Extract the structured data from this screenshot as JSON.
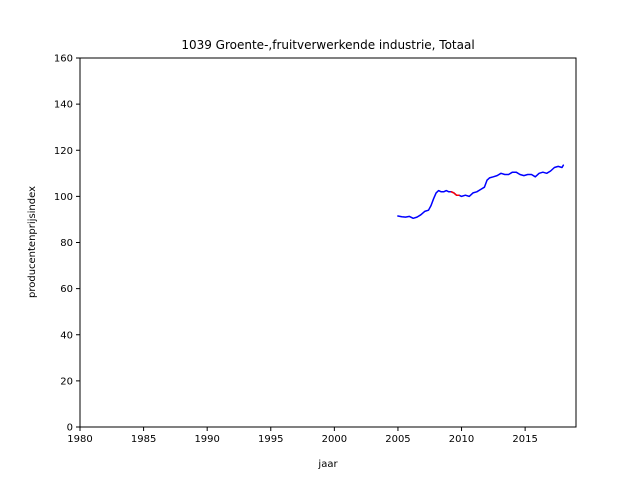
{
  "chart_data": {
    "type": "line",
    "title": "1039 Groente-,fruitverwerkende industrie, Totaal",
    "xlabel": "jaar",
    "ylabel": "producentenprijsindex",
    "xlim": [
      1980,
      2019
    ],
    "ylim": [
      0,
      160
    ],
    "xticks": [
      1980,
      1985,
      1990,
      1995,
      2000,
      2005,
      2010,
      2015
    ],
    "xtick_labels": [
      "1980",
      "1985",
      "1990",
      "1995",
      "2000",
      "2005",
      "2010",
      "2015"
    ],
    "yticks": [
      0,
      20,
      40,
      60,
      80,
      100,
      120,
      140,
      160
    ],
    "ytick_labels": [
      "0",
      "20",
      "40",
      "60",
      "80",
      "100",
      "120",
      "140",
      "160"
    ],
    "grid": false,
    "colors": {
      "main": "#0000ff",
      "highlight": "#ff0000",
      "axis": "#000000",
      "background": "#ffffff"
    },
    "series": [
      {
        "name": "producentenprijsindex",
        "color": "#0000ff",
        "x": [
          2005.0,
          2005.3,
          2005.6,
          2005.9,
          2006.2,
          2006.5,
          2006.8,
          2007.1,
          2007.4,
          2007.6,
          2007.8,
          2008.0,
          2008.2,
          2008.4,
          2008.6,
          2008.8,
          2009.0,
          2009.2,
          2009.4,
          2009.6,
          2009.8,
          2010.0,
          2010.3,
          2010.6,
          2010.9,
          2011.2,
          2011.5,
          2011.8,
          2012.0,
          2012.2,
          2012.5,
          2012.8,
          2013.1,
          2013.4,
          2013.7,
          2014.0,
          2014.3,
          2014.6,
          2014.9,
          2015.2,
          2015.5,
          2015.8,
          2016.1,
          2016.4,
          2016.7,
          2017.0,
          2017.3,
          2017.6,
          2017.9,
          2018.0
        ],
        "y": [
          91.5,
          91.2,
          91.0,
          91.3,
          90.5,
          91.0,
          92.0,
          93.5,
          94.0,
          96.0,
          99.0,
          101.5,
          102.5,
          102.0,
          102.0,
          102.5,
          102.0,
          102.0,
          101.5,
          100.5,
          100.5,
          100.0,
          100.5,
          100.0,
          101.5,
          102.0,
          103.0,
          104.0,
          107.0,
          108.0,
          108.5,
          109.0,
          110.0,
          109.5,
          109.5,
          110.5,
          110.5,
          109.5,
          109.0,
          109.5,
          109.5,
          108.5,
          110.0,
          110.5,
          110.0,
          111.0,
          112.5,
          113.0,
          112.5,
          113.5
        ]
      },
      {
        "name": "highlight",
        "color": "#ff0000",
        "x": [
          2009.2,
          2009.4,
          2009.6,
          2009.8
        ],
        "y": [
          102.0,
          101.5,
          100.5,
          100.5
        ]
      }
    ]
  }
}
